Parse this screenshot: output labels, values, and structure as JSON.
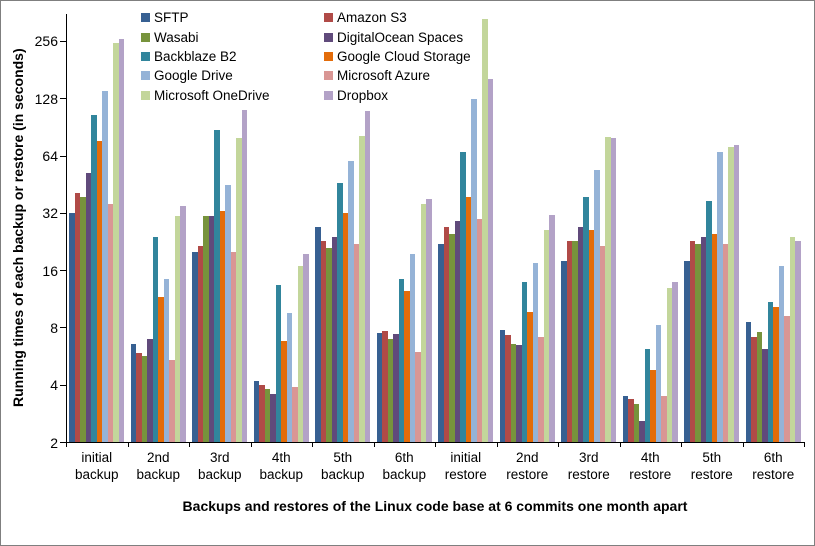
{
  "chart_data": {
    "type": "bar",
    "title": "",
    "ylabel": "Running times of each backup or restore (in seconds)",
    "xlabel": "Backups and restores of the Linux code base at 6 commits one month apart",
    "y_scale": "log2",
    "ylim": [
      2,
      360
    ],
    "yticks": [
      2,
      4,
      8,
      16,
      32,
      64,
      128,
      256
    ],
    "grid": false,
    "legend_position": "top-left, two columns",
    "categories": [
      "initial backup",
      "2nd backup",
      "3rd backup",
      "4th backup",
      "5th backup",
      "6th backup",
      "initial restore",
      "2nd restore",
      "3rd restore",
      "4th restore",
      "5th restore",
      "6th restore"
    ],
    "series": [
      {
        "name": "SFTP",
        "color": "#376092",
        "values": [
          32,
          6.6,
          20,
          4.2,
          27,
          7.5,
          22,
          7.8,
          18,
          3.5,
          18,
          8.6
        ]
      },
      {
        "name": "Amazon S3",
        "color": "#B04A47",
        "values": [
          41,
          5.9,
          21.5,
          4.0,
          23,
          7.7,
          27,
          7.3,
          23,
          3.4,
          23,
          7.2
        ]
      },
      {
        "name": "Wasabi",
        "color": "#77933C",
        "values": [
          39,
          5.7,
          31,
          3.8,
          21,
          7.0,
          25,
          6.6,
          23,
          3.2,
          22,
          7.6
        ]
      },
      {
        "name": "DigitalOcean Spaces",
        "color": "#604A7B",
        "values": [
          52,
          7.0,
          31,
          3.6,
          24,
          7.4,
          29,
          6.5,
          27,
          2.6,
          24,
          6.2
        ]
      },
      {
        "name": "Backblaze B2",
        "color": "#31859C",
        "values": [
          105,
          24,
          88,
          13.5,
          46,
          14.5,
          67,
          14,
          39,
          6.2,
          37,
          11
        ]
      },
      {
        "name": "Google Cloud Storage",
        "color": "#E36C0A",
        "values": [
          77,
          11.6,
          33,
          6.8,
          32,
          12.5,
          39,
          9.7,
          26,
          4.8,
          25,
          10.3
        ]
      },
      {
        "name": "Google Drive",
        "color": "#95B3D7",
        "values": [
          140,
          14.5,
          45,
          9.6,
          60,
          19.5,
          128,
          17.5,
          54,
          8.3,
          67,
          17
        ]
      },
      {
        "name": "Microsoft Azure",
        "color": "#D99694",
        "values": [
          36,
          5.4,
          20,
          3.9,
          22,
          6.0,
          30,
          7.2,
          21.5,
          3.5,
          22,
          9.2
        ]
      },
      {
        "name": "Microsoft OneDrive",
        "color": "#C3D69B",
        "values": [
          250,
          31,
          80,
          17,
          82,
          36,
          335,
          26,
          81,
          13,
          71,
          24
        ]
      },
      {
        "name": "Dropbox",
        "color": "#B3A2C7",
        "values": [
          265,
          35,
          112,
          19.5,
          110,
          38,
          163,
          31.5,
          80,
          14,
          73,
          23
        ]
      }
    ],
    "legend_columns": [
      [
        "SFTP",
        "Wasabi",
        "Backblaze B2",
        "Google Drive",
        "Microsoft OneDrive"
      ],
      [
        "Amazon S3",
        "DigitalOcean Spaces",
        "Google Cloud Storage",
        "Microsoft Azure",
        "Dropbox"
      ]
    ]
  }
}
